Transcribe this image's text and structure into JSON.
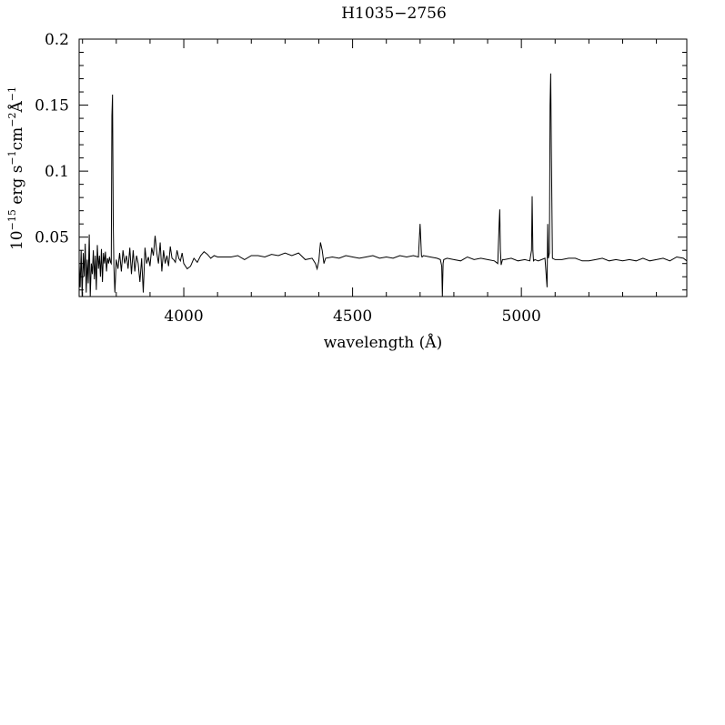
{
  "chart_data": {
    "type": "line",
    "title": "H1035−2756",
    "xlabel": "wavelength (Å)",
    "ylabel_prefix": "10",
    "ylabel_exp": "−15",
    "ylabel_mid1": " erg s",
    "ylabel_exp2": "−1",
    "ylabel_mid2": "cm",
    "ylabel_exp3": "−2",
    "ylabel_mid3": "Å",
    "ylabel_exp4": "−1",
    "xlim": [
      3690,
      5490
    ],
    "ylim": [
      0.005,
      0.2
    ],
    "x_ticks": [
      {
        "v": 4000,
        "label": "4000"
      },
      {
        "v": 4500,
        "label": "4500"
      },
      {
        "v": 5000,
        "label": "5000"
      }
    ],
    "y_ticks": [
      {
        "v": 0.05,
        "label": "0.05"
      },
      {
        "v": 0.1,
        "label": "0.1"
      },
      {
        "v": 0.15,
        "label": "0.15"
      },
      {
        "v": 0.2,
        "label": "0.2"
      }
    ],
    "grid": false,
    "series": [
      {
        "color": "#000000",
        "x": [
          3690,
          3693,
          3696,
          3699,
          3702,
          3705,
          3708,
          3711,
          3714,
          3717,
          3720,
          3723,
          3726,
          3729,
          3732,
          3735,
          3738,
          3741,
          3744,
          3747,
          3750,
          3753,
          3756,
          3759,
          3762,
          3765,
          3768,
          3771,
          3774,
          3777,
          3780,
          3783,
          3785,
          3787,
          3789,
          3791,
          3793,
          3796,
          3800,
          3805,
          3810,
          3815,
          3820,
          3825,
          3830,
          3835,
          3840,
          3845,
          3850,
          3855,
          3860,
          3865,
          3870,
          3875,
          3880,
          3885,
          3890,
          3895,
          3900,
          3905,
          3910,
          3915,
          3920,
          3925,
          3930,
          3935,
          3940,
          3945,
          3950,
          3955,
          3960,
          3965,
          3970,
          3975,
          3980,
          3985,
          3990,
          3995,
          4000,
          4010,
          4020,
          4030,
          4040,
          4050,
          4060,
          4070,
          4080,
          4090,
          4100,
          4120,
          4140,
          4160,
          4180,
          4200,
          4220,
          4240,
          4260,
          4280,
          4300,
          4320,
          4340,
          4360,
          4380,
          4390,
          4395,
          4400,
          4405,
          4410,
          4415,
          4420,
          4440,
          4460,
          4480,
          4500,
          4520,
          4540,
          4560,
          4580,
          4600,
          4620,
          4640,
          4660,
          4680,
          4695,
          4700,
          4702,
          4704,
          4706,
          4710,
          4730,
          4750,
          4760,
          4764,
          4766,
          4768,
          4770,
          4780,
          4800,
          4820,
          4840,
          4860,
          4880,
          4900,
          4920,
          4930,
          4934,
          4936,
          4938,
          4940,
          4944,
          4950,
          4970,
          4990,
          5010,
          5025,
          5030,
          5032,
          5034,
          5036,
          5040,
          5050,
          5060,
          5070,
          5076,
          5078,
          5080,
          5083,
          5085,
          5087,
          5089,
          5092,
          5100,
          5120,
          5140,
          5160,
          5180,
          5200,
          5220,
          5240,
          5260,
          5280,
          5300,
          5320,
          5340,
          5360,
          5380,
          5400,
          5420,
          5440,
          5460,
          5480,
          5490
        ],
        "y": [
          0.03,
          0.012,
          0.04,
          0.005,
          0.038,
          0.02,
          0.045,
          0.008,
          0.033,
          0.015,
          0.052,
          0.005,
          0.03,
          0.022,
          0.04,
          0.018,
          0.036,
          0.01,
          0.044,
          0.026,
          0.036,
          0.02,
          0.041,
          0.016,
          0.038,
          0.03,
          0.039,
          0.024,
          0.034,
          0.03,
          0.035,
          0.031,
          0.03,
          0.142,
          0.158,
          0.06,
          0.028,
          0.008,
          0.033,
          0.026,
          0.038,
          0.024,
          0.04,
          0.03,
          0.036,
          0.026,
          0.042,
          0.022,
          0.04,
          0.024,
          0.036,
          0.03,
          0.016,
          0.034,
          0.008,
          0.042,
          0.03,
          0.035,
          0.028,
          0.042,
          0.036,
          0.051,
          0.038,
          0.03,
          0.046,
          0.024,
          0.04,
          0.03,
          0.036,
          0.028,
          0.043,
          0.034,
          0.033,
          0.031,
          0.04,
          0.034,
          0.032,
          0.038,
          0.03,
          0.026,
          0.028,
          0.034,
          0.031,
          0.036,
          0.039,
          0.037,
          0.034,
          0.036,
          0.035,
          0.035,
          0.035,
          0.036,
          0.033,
          0.036,
          0.036,
          0.035,
          0.037,
          0.036,
          0.038,
          0.036,
          0.038,
          0.033,
          0.034,
          0.03,
          0.026,
          0.032,
          0.046,
          0.04,
          0.03,
          0.034,
          0.035,
          0.034,
          0.036,
          0.035,
          0.034,
          0.035,
          0.036,
          0.034,
          0.035,
          0.034,
          0.036,
          0.035,
          0.036,
          0.035,
          0.06,
          0.048,
          0.036,
          0.035,
          0.036,
          0.035,
          0.034,
          0.033,
          0.028,
          0.005,
          0.03,
          0.033,
          0.034,
          0.033,
          0.032,
          0.035,
          0.033,
          0.034,
          0.033,
          0.032,
          0.03,
          0.06,
          0.071,
          0.04,
          0.029,
          0.033,
          0.033,
          0.034,
          0.032,
          0.033,
          0.032,
          0.04,
          0.081,
          0.04,
          0.032,
          0.033,
          0.032,
          0.033,
          0.034,
          0.012,
          0.06,
          0.034,
          0.038,
          0.15,
          0.174,
          0.11,
          0.034,
          0.033,
          0.033,
          0.034,
          0.034,
          0.032,
          0.032,
          0.033,
          0.034,
          0.032,
          0.033,
          0.032,
          0.033,
          0.032,
          0.034,
          0.032,
          0.033,
          0.034,
          0.032,
          0.035,
          0.034,
          0.032
        ]
      }
    ]
  }
}
